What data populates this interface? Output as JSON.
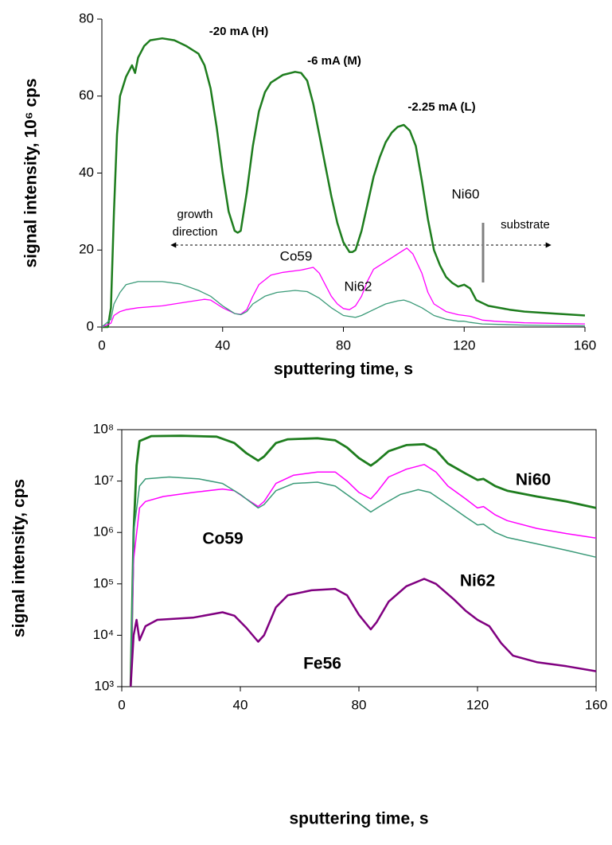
{
  "chart_data": [
    {
      "type": "line",
      "xlabel": "sputtering time,  s",
      "ylabel": "signal intensity, 10⁶ cps",
      "xlim": [
        0,
        160
      ],
      "xticks": [
        0,
        40,
        80,
        120,
        160
      ],
      "ylim": [
        0,
        80
      ],
      "yticks": [
        0,
        20,
        40,
        60,
        80
      ],
      "annotations": [
        "-20 mA (H)",
        "-6 mA (M)",
        "-2.25 mA (L)",
        "growth",
        "direction",
        "substrate"
      ],
      "series": [
        {
          "name": "Ni60",
          "color": "#1e7d1e",
          "x": [
            0,
            2,
            3,
            4,
            5,
            6,
            8,
            10,
            11,
            12,
            14,
            16,
            20,
            24,
            28,
            32,
            34,
            36,
            38,
            40,
            42,
            44,
            45,
            46,
            48,
            50,
            52,
            54,
            56,
            60,
            64,
            66,
            68,
            70,
            72,
            74,
            76,
            78,
            80,
            82,
            83,
            84,
            86,
            88,
            90,
            92,
            94,
            96,
            98,
            100,
            102,
            104,
            106,
            108,
            110,
            112,
            114,
            116,
            118,
            120,
            122,
            124,
            128,
            135,
            140,
            150,
            160
          ],
          "values": [
            0,
            0,
            5,
            30,
            50,
            60,
            65,
            68,
            66,
            70,
            73,
            74.5,
            75,
            74.5,
            73,
            71,
            68,
            62,
            52,
            40,
            30,
            25,
            24.5,
            25,
            35,
            47,
            56,
            61,
            63.5,
            65.5,
            66.3,
            66,
            64,
            58,
            50,
            42,
            34,
            27,
            22,
            19.5,
            19.5,
            20,
            25,
            32,
            39,
            44,
            48,
            50.5,
            52,
            52.5,
            51,
            47,
            38,
            28,
            20,
            16,
            13,
            11.5,
            10.5,
            11,
            10,
            7,
            5.5,
            4.5,
            4,
            3.5,
            3
          ]
        },
        {
          "name": "Co59",
          "color": "#ff00ff",
          "x": [
            0,
            3,
            4,
            6,
            8,
            12,
            20,
            28,
            34,
            36,
            40,
            44,
            46,
            48,
            50,
            52,
            56,
            60,
            66,
            70,
            72,
            74,
            76,
            78,
            80,
            82,
            84,
            86,
            88,
            90,
            94,
            98,
            101,
            103,
            106,
            108,
            110,
            114,
            118,
            120,
            122,
            126,
            130,
            140,
            160
          ],
          "values": [
            0,
            1,
            3,
            4,
            4.5,
            5,
            5.5,
            6.5,
            7.2,
            7,
            5,
            3.5,
            3.3,
            4.5,
            8,
            11,
            13.5,
            14.2,
            14.8,
            15.5,
            14,
            11,
            8,
            6,
            4.8,
            4.5,
            5.5,
            8,
            12,
            15,
            17,
            19,
            20.5,
            19,
            14,
            9,
            6,
            4,
            3.2,
            3,
            2.8,
            1.8,
            1.5,
            1.1,
            0.8
          ]
        },
        {
          "name": "Ni62",
          "color": "#3a9a78",
          "x": [
            0,
            3,
            4,
            6,
            8,
            12,
            20,
            26,
            32,
            36,
            40,
            44,
            46,
            48,
            50,
            54,
            58,
            64,
            68,
            72,
            76,
            80,
            84,
            86,
            90,
            94,
            98,
            100,
            102,
            106,
            110,
            114,
            118,
            120,
            122,
            126,
            140,
            160
          ],
          "values": [
            0,
            2,
            6,
            9,
            11,
            11.8,
            11.8,
            11.2,
            9.5,
            8,
            5.5,
            3.5,
            3.2,
            4,
            6,
            8,
            9,
            9.5,
            9.2,
            7.5,
            5,
            3,
            2.5,
            3,
            4.5,
            6,
            6.8,
            7,
            6.5,
            5,
            3,
            2,
            1.5,
            1.5,
            1.2,
            0.8,
            0.5,
            0.3
          ]
        }
      ]
    },
    {
      "type": "line",
      "log_y": true,
      "xlabel": "sputtering time,  s",
      "ylabel": "signal intensity, cps",
      "xlim": [
        0,
        160
      ],
      "xticks": [
        0,
        40,
        80,
        120,
        160
      ],
      "ylim": [
        1000,
        100000000
      ],
      "yticks": [
        {
          "value": 1000,
          "label": "10³"
        },
        {
          "value": 10000,
          "label": "10⁴"
        },
        {
          "value": 100000,
          "label": "10⁵"
        },
        {
          "value": 1000000,
          "label": "10⁶"
        },
        {
          "value": 10000000,
          "label": "10⁷"
        },
        {
          "value": 100000000,
          "label": "10⁸"
        }
      ],
      "series": [
        {
          "name": "Ni60",
          "color": "#1e7d1e",
          "x": [
            3,
            4,
            5,
            6,
            10,
            20,
            32,
            38,
            42,
            46,
            48,
            52,
            56,
            66,
            72,
            76,
            80,
            84,
            86,
            90,
            96,
            102,
            106,
            110,
            116,
            120,
            122,
            126,
            130,
            140,
            150,
            160
          ],
          "values": [
            1000,
            1000000,
            20000000,
            60000000,
            75000000,
            76000000,
            73000000,
            55000000,
            35000000,
            25000000,
            30000000,
            55000000,
            65000000,
            68000000,
            62000000,
            45000000,
            28000000,
            20000000,
            24000000,
            38000000,
            50000000,
            52000000,
            40000000,
            22000000,
            14000000,
            10500000,
            11000000,
            8000000,
            6500000,
            5000000,
            4000000,
            3000000
          ]
        },
        {
          "name": "Co59",
          "color": "#ff00ff",
          "x": [
            3,
            4,
            6,
            8,
            14,
            24,
            34,
            38,
            42,
            46,
            48,
            52,
            58,
            66,
            72,
            76,
            80,
            84,
            86,
            90,
            96,
            102,
            106,
            110,
            116,
            120,
            122,
            126,
            130,
            140,
            150,
            160
          ],
          "values": [
            1000,
            300000,
            3000000,
            4000000,
            5000000,
            6000000,
            7000000,
            6500000,
            4500000,
            3200000,
            4000000,
            9000000,
            13000000,
            15000000,
            15000000,
            10000000,
            6000000,
            4500000,
            6000000,
            12000000,
            17000000,
            21000000,
            15000000,
            8000000,
            4500000,
            3000000,
            3200000,
            2200000,
            1700000,
            1200000,
            950000,
            780000
          ]
        },
        {
          "name": "Ni62",
          "color": "#3a9a78",
          "x": [
            3,
            4,
            6,
            8,
            16,
            26,
            34,
            40,
            46,
            48,
            52,
            58,
            66,
            72,
            78,
            84,
            88,
            94,
            100,
            104,
            110,
            116,
            120,
            122,
            126,
            130,
            140,
            150,
            160
          ],
          "values": [
            1000,
            1000000,
            8000000,
            11000000,
            12000000,
            11000000,
            9000000,
            5500000,
            3000000,
            3500000,
            6500000,
            9000000,
            9500000,
            8000000,
            4500000,
            2500000,
            3500000,
            5500000,
            6800000,
            6000000,
            3500000,
            2000000,
            1400000,
            1450000,
            1000000,
            800000,
            600000,
            450000,
            330000
          ]
        },
        {
          "name": "Fe56",
          "color": "#800080",
          "x": [
            3,
            4,
            5,
            6,
            8,
            12,
            24,
            34,
            38,
            42,
            46,
            48,
            52,
            56,
            64,
            72,
            76,
            80,
            84,
            86,
            90,
            96,
            102,
            106,
            112,
            116,
            120,
            124,
            128,
            132,
            140,
            150,
            160
          ],
          "values": [
            1000,
            10000,
            20000,
            8000,
            15000,
            20000,
            22000,
            28000,
            24000,
            14000,
            7500,
            10000,
            35000,
            60000,
            75000,
            80000,
            60000,
            25000,
            13000,
            18000,
            45000,
            90000,
            125000,
            100000,
            50000,
            30000,
            20000,
            15000,
            7000,
            4000,
            3000,
            2500,
            2000
          ]
        }
      ]
    }
  ]
}
